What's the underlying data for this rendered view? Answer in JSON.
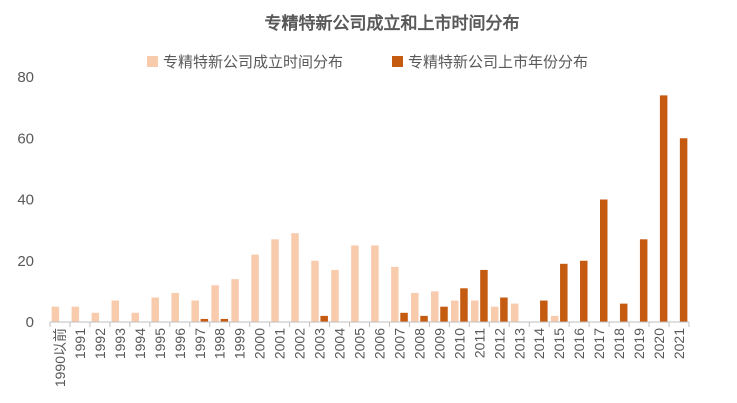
{
  "chart_data": {
    "type": "bar",
    "title": "专精特新公司成立和上市时间分布",
    "xlabel": "",
    "ylabel": "",
    "ylim": [
      0,
      80
    ],
    "yticks": [
      0,
      20,
      40,
      60,
      80
    ],
    "grid": false,
    "legend_position": "top",
    "categories": [
      "1990以前",
      "1991",
      "1992",
      "1993",
      "1994",
      "1995",
      "1996",
      "1997",
      "1998",
      "1999",
      "2000",
      "2001",
      "2002",
      "2003",
      "2004",
      "2005",
      "2006",
      "2007",
      "2008",
      "2009",
      "2010",
      "2011",
      "2012",
      "2013",
      "2014",
      "2015",
      "2016",
      "2017",
      "2018",
      "2019",
      "2020",
      "2021"
    ],
    "series": [
      {
        "name": "专精特新公司成立时间分布",
        "color": "#F8CBAD",
        "values": [
          5,
          5,
          3,
          7,
          3,
          8,
          9.5,
          7,
          12,
          14,
          22,
          27,
          29,
          20,
          17,
          25,
          25,
          18,
          9.5,
          10,
          7,
          7,
          5,
          6,
          0,
          2,
          0,
          0,
          0,
          0,
          0,
          0
        ]
      },
      {
        "name": "专精特新公司上市年份分布",
        "color": "#C55A11",
        "values": [
          0,
          0,
          0,
          0,
          0,
          0,
          0,
          1,
          1,
          0,
          0,
          0,
          0,
          2,
          0,
          0,
          0,
          3,
          2,
          5,
          11,
          17,
          8,
          0,
          7,
          19,
          20,
          40,
          6,
          27,
          74,
          60
        ]
      }
    ]
  }
}
